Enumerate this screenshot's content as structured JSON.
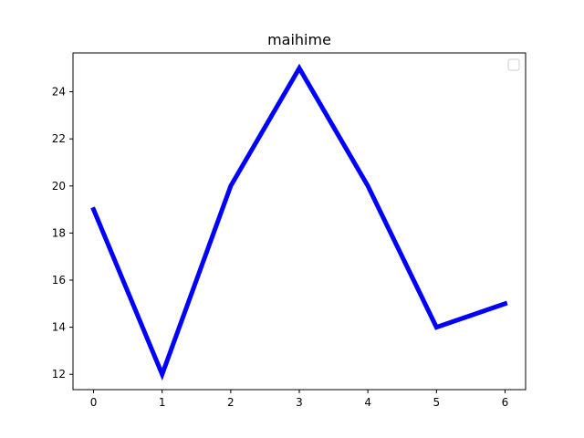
{
  "chart_data": {
    "type": "line",
    "title": "maihime",
    "xlabel": "",
    "ylabel": "",
    "x": [
      0,
      1,
      2,
      3,
      4,
      5,
      6
    ],
    "series": [
      {
        "values": [
          19,
          12,
          20,
          25,
          20,
          14,
          15
        ],
        "color": "#0000ff"
      }
    ],
    "xticks": [
      0,
      1,
      2,
      3,
      4,
      5,
      6
    ],
    "yticks": [
      12,
      14,
      16,
      18,
      20,
      22,
      24
    ],
    "xlim": [
      -0.3,
      6.3
    ],
    "ylim": [
      11.35,
      25.65
    ],
    "grid": false,
    "legend": {
      "placement": "upper right",
      "entries": []
    }
  }
}
